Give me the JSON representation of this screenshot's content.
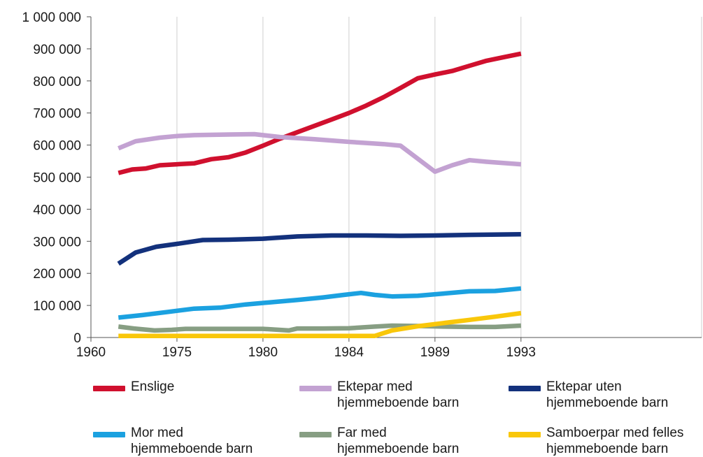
{
  "chart_data": {
    "type": "line",
    "title": "",
    "xlabel": "",
    "ylabel": "",
    "x_range": [
      1960,
      1995.5
    ],
    "x_ticks": [
      {
        "value": 1960,
        "label": "1960"
      },
      {
        "value": 1965,
        "label": "1975"
      },
      {
        "value": 1970,
        "label": "1980"
      },
      {
        "value": 1975,
        "label": "1984"
      },
      {
        "value": 1980,
        "label": "1989"
      },
      {
        "value": 1985,
        "label": "1993"
      }
    ],
    "ylim": [
      0,
      1000000
    ],
    "y_ticks": [
      {
        "value": 0,
        "label": "0"
      },
      {
        "value": 100000,
        "label": "100 000"
      },
      {
        "value": 200000,
        "label": "200 000"
      },
      {
        "value": 300000,
        "label": "300 000"
      },
      {
        "value": 400000,
        "label": "400 000"
      },
      {
        "value": 500000,
        "label": "500 000"
      },
      {
        "value": 600000,
        "label": "600 000"
      },
      {
        "value": 700000,
        "label": "700 000"
      },
      {
        "value": 800000,
        "label": "800 000"
      },
      {
        "value": 900000,
        "label": "900 000"
      },
      {
        "value": 1000000,
        "label": "1 000 000"
      }
    ],
    "grid": "vertical",
    "legend_position": "bottom",
    "series": [
      {
        "name": "Enslige",
        "color": "#d0102e",
        "points": [
          [
            1961.6,
            513000
          ],
          [
            1962.4,
            524000
          ],
          [
            1963.2,
            527000
          ],
          [
            1964,
            537000
          ],
          [
            1965,
            540000
          ],
          [
            1966,
            543000
          ],
          [
            1967,
            556000
          ],
          [
            1968,
            562000
          ],
          [
            1969,
            577000
          ],
          [
            1970,
            598000
          ],
          [
            1971,
            620000
          ],
          [
            1972,
            640000
          ],
          [
            1973,
            660000
          ],
          [
            1974,
            680000
          ],
          [
            1975,
            700000
          ],
          [
            1976,
            723000
          ],
          [
            1977,
            749000
          ],
          [
            1978,
            778000
          ],
          [
            1979,
            808000
          ],
          [
            1980,
            820000
          ],
          [
            1981,
            831000
          ],
          [
            1982,
            847000
          ],
          [
            1983,
            863000
          ],
          [
            1984,
            874000
          ],
          [
            1985,
            885000
          ]
        ]
      },
      {
        "name": "Ektepar med\nhjemmeboende barn",
        "color": "#c3a2d2",
        "points": [
          [
            1961.6,
            590000
          ],
          [
            1962.6,
            612000
          ],
          [
            1964,
            623000
          ],
          [
            1965,
            628000
          ],
          [
            1966,
            631000
          ],
          [
            1968,
            633000
          ],
          [
            1969.5,
            634000
          ],
          [
            1971,
            625000
          ],
          [
            1973,
            618000
          ],
          [
            1975,
            610000
          ],
          [
            1977,
            603000
          ],
          [
            1978,
            598000
          ],
          [
            1980,
            517000
          ],
          [
            1981,
            537000
          ],
          [
            1982,
            553000
          ],
          [
            1983,
            548000
          ],
          [
            1985,
            540000
          ]
        ]
      },
      {
        "name": "Ektepar uten\nhjemmeboende barn",
        "color": "#13317c",
        "points": [
          [
            1961.6,
            230000
          ],
          [
            1962.6,
            265000
          ],
          [
            1963.8,
            283000
          ],
          [
            1965,
            292000
          ],
          [
            1966.5,
            304000
          ],
          [
            1968,
            305000
          ],
          [
            1970,
            308000
          ],
          [
            1972,
            315000
          ],
          [
            1974,
            318000
          ],
          [
            1976,
            318000
          ],
          [
            1978,
            317000
          ],
          [
            1980,
            318000
          ],
          [
            1982,
            320000
          ],
          [
            1985,
            322000
          ]
        ]
      },
      {
        "name": "Mor med\nhjemmeboende barn",
        "color": "#1ba1e0",
        "points": [
          [
            1961.6,
            62000
          ],
          [
            1963,
            70000
          ],
          [
            1964.5,
            80000
          ],
          [
            1966,
            90000
          ],
          [
            1967.5,
            93000
          ],
          [
            1969,
            103000
          ],
          [
            1970.5,
            110000
          ],
          [
            1972,
            117000
          ],
          [
            1973.5,
            125000
          ],
          [
            1974.7,
            133000
          ],
          [
            1975.7,
            139000
          ],
          [
            1976.5,
            133000
          ],
          [
            1977.5,
            128000
          ],
          [
            1979,
            130000
          ],
          [
            1980.5,
            137000
          ],
          [
            1982,
            144000
          ],
          [
            1983.5,
            145000
          ],
          [
            1985,
            153000
          ]
        ]
      },
      {
        "name": "Far med\nhjemmeboende barn",
        "color": "#879e83",
        "points": [
          [
            1961.6,
            34000
          ],
          [
            1962.5,
            28000
          ],
          [
            1963.7,
            22000
          ],
          [
            1964.7,
            24000
          ],
          [
            1965.5,
            27000
          ],
          [
            1967,
            27000
          ],
          [
            1968.5,
            27000
          ],
          [
            1970,
            27000
          ],
          [
            1971.5,
            22000
          ],
          [
            1972,
            28000
          ],
          [
            1973.5,
            28000
          ],
          [
            1975,
            29000
          ],
          [
            1976.5,
            34000
          ],
          [
            1977.5,
            37000
          ],
          [
            1979,
            36000
          ],
          [
            1980.5,
            34000
          ],
          [
            1982,
            33000
          ],
          [
            1983.5,
            33000
          ],
          [
            1985,
            37000
          ]
        ]
      },
      {
        "name": "Samboerpar med felles\nhjemmeboende barn",
        "color": "#f9c70a",
        "points": [
          [
            1961.6,
            5000
          ],
          [
            1963,
            5000
          ],
          [
            1965,
            5000
          ],
          [
            1967,
            5000
          ],
          [
            1969,
            5000
          ],
          [
            1971,
            5000
          ],
          [
            1973,
            5000
          ],
          [
            1975,
            5000
          ],
          [
            1976.5,
            5000
          ],
          [
            1977.5,
            22000
          ],
          [
            1979,
            35000
          ],
          [
            1980.5,
            45000
          ],
          [
            1982,
            55000
          ],
          [
            1983.5,
            65000
          ],
          [
            1985,
            76000
          ]
        ]
      }
    ]
  }
}
